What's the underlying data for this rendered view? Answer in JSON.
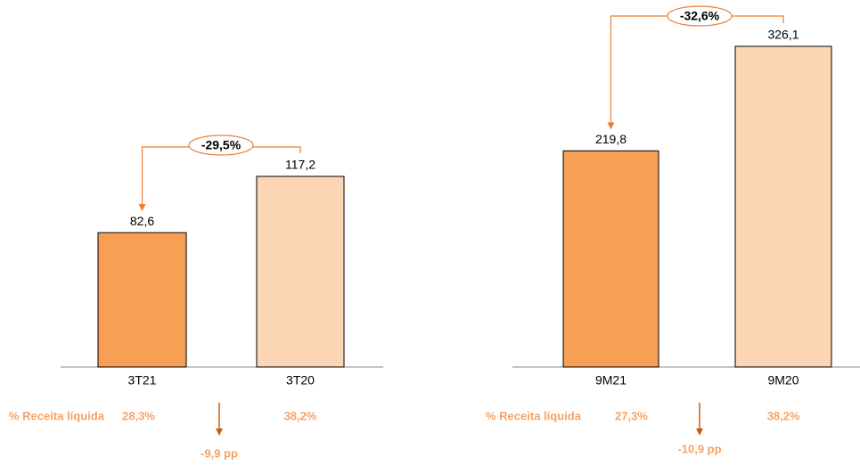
{
  "chart_data": [
    {
      "type": "bar",
      "categories": [
        "3T21",
        "3T20"
      ],
      "values": [
        82.6,
        117.2
      ],
      "value_labels": [
        "82,6",
        "117,2"
      ],
      "colors": [
        "#f79f55",
        "#fcd5b5"
      ],
      "change": "-29,5%",
      "margin_title": "% Receita líquida",
      "margins": [
        "28,3%",
        "38,2%"
      ],
      "margin_change": "-9,9 pp"
    },
    {
      "type": "bar",
      "categories": [
        "9M21",
        "9M20"
      ],
      "values": [
        219.8,
        326.1
      ],
      "value_labels": [
        "219,8",
        "326,1"
      ],
      "colors": [
        "#f79f55",
        "#fcd5b5"
      ],
      "change": "-32,6%",
      "margin_title": "% Receita líquida",
      "margins": [
        "27,3%",
        "38,2%"
      ],
      "margin_change": "-10,9 pp"
    }
  ]
}
